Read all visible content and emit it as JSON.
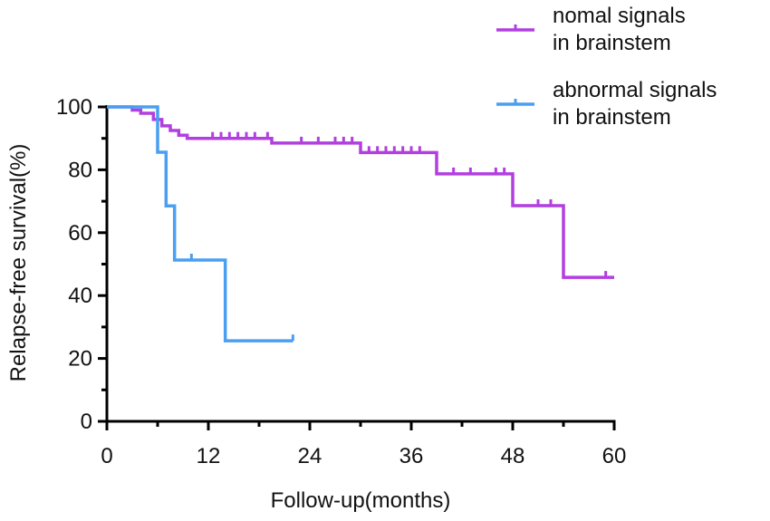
{
  "chart_data": {
    "type": "step",
    "x_label": "Follow-up(months)",
    "y_label": "Relapse-free survival(%)",
    "xlim": [
      0,
      60
    ],
    "xticks": [
      0,
      12,
      24,
      36,
      48,
      60
    ],
    "xminor": [
      6,
      18,
      30,
      42,
      54
    ],
    "ylim": [
      0,
      100
    ],
    "yticks": [
      0,
      20,
      40,
      60,
      80,
      100
    ],
    "yminor": [
      10,
      30,
      50,
      70,
      90
    ],
    "series": [
      {
        "name": "nomal signals\nin brainstem",
        "color": "#b23fe0",
        "x": [
          0,
          3,
          4,
          5.5,
          6.5,
          7.5,
          8.5,
          9.5,
          19.5,
          30,
          39,
          48,
          54,
          60
        ],
        "values": [
          100,
          99,
          98,
          96,
          94,
          92.5,
          91,
          90,
          88.5,
          85.5,
          78.7,
          68.6,
          45.8,
          45.8
        ],
        "censor_x": [
          12.5,
          13.5,
          14.5,
          15.5,
          16.5,
          17.5,
          19,
          23,
          25,
          27,
          28,
          29,
          31,
          32,
          33,
          34,
          35,
          36,
          37,
          41,
          43,
          46,
          47,
          51,
          52.5,
          59
        ],
        "censor_values": [
          90,
          90,
          90,
          90,
          90,
          90,
          90,
          88.5,
          88.5,
          88.5,
          88.5,
          88.5,
          85.5,
          85.5,
          85.5,
          85.5,
          85.5,
          85.5,
          85.5,
          78.7,
          78.7,
          78.7,
          78.7,
          68.6,
          68.6,
          45.8
        ]
      },
      {
        "name": "abnormal signals\nin brainstem",
        "color": "#4a9ff0",
        "x": [
          0,
          6,
          7,
          8,
          14,
          22
        ],
        "values": [
          100,
          85.6,
          68.5,
          51.3,
          25.6,
          25.6
        ],
        "censor_x": [
          10,
          22
        ],
        "censor_values": [
          51.3,
          25.6
        ]
      }
    ]
  }
}
